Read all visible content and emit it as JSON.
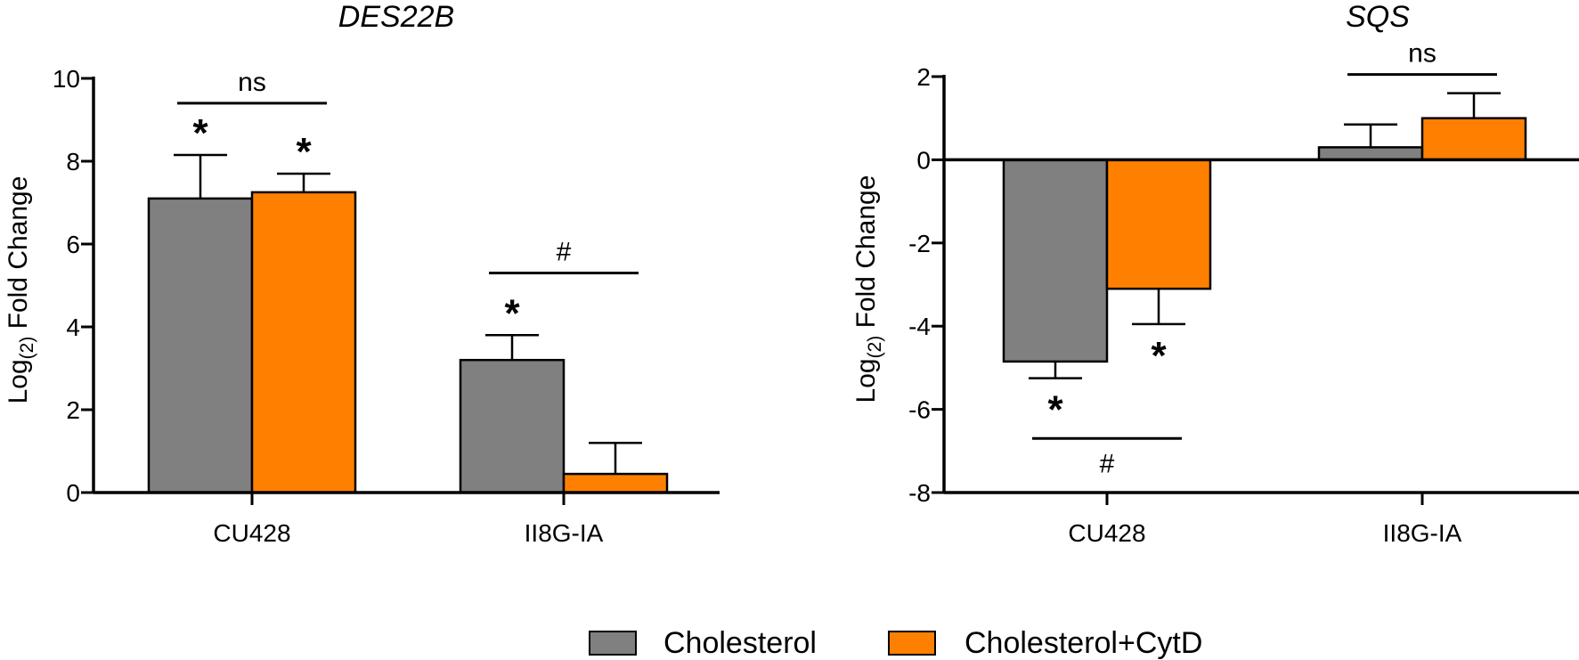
{
  "colors": {
    "series1": "#808080",
    "series2": "#ff8000",
    "axis": "#000000"
  },
  "legend": {
    "items": [
      {
        "label": "Cholesterol",
        "color": "#808080"
      },
      {
        "label": "Cholesterol+CytD",
        "color": "#ff8000"
      }
    ]
  },
  "chart_data": [
    {
      "type": "bar",
      "title": "DES22B",
      "ylabel": "Log",
      "ylabel_sub": "(2)",
      "ylabel_rest": " Fold Change",
      "ylim": [
        0,
        10
      ],
      "yticks": [
        0,
        2,
        4,
        6,
        8,
        10
      ],
      "categories": [
        "CU428",
        "II8G-IA"
      ],
      "series": [
        {
          "name": "Cholesterol",
          "values": [
            7.1,
            3.2
          ],
          "errors": [
            1.05,
            0.6
          ]
        },
        {
          "name": "Cholesterol+CytD",
          "values": [
            7.25,
            0.45
          ],
          "errors": [
            0.45,
            0.75
          ]
        }
      ],
      "annotations": {
        "stars": [
          {
            "category": 0,
            "series": 0,
            "text": "*"
          },
          {
            "category": 0,
            "series": 1,
            "text": "*"
          },
          {
            "category": 1,
            "series": 0,
            "text": "*"
          }
        ],
        "brackets": [
          {
            "category": 0,
            "text": "ns",
            "y": 9.4
          },
          {
            "category": 1,
            "text": "#",
            "y": 5.3
          }
        ]
      }
    },
    {
      "type": "bar",
      "title": "SQS",
      "ylabel": "Log",
      "ylabel_sub": "(2)",
      "ylabel_rest": " Fold Change",
      "ylim": [
        -8,
        2
      ],
      "yticks": [
        -8,
        -6,
        -4,
        -2,
        0,
        2
      ],
      "categories": [
        "CU428",
        "II8G-IA"
      ],
      "series": [
        {
          "name": "Cholesterol",
          "values": [
            -4.85,
            0.3
          ],
          "errors": [
            0.4,
            0.55
          ]
        },
        {
          "name": "Cholesterol+CytD",
          "values": [
            -3.1,
            1.0
          ],
          "errors": [
            0.85,
            0.6
          ]
        }
      ],
      "annotations": {
        "stars": [
          {
            "category": 0,
            "series": 0,
            "text": "*"
          },
          {
            "category": 0,
            "series": 1,
            "text": "*"
          }
        ],
        "brackets": [
          {
            "category": 0,
            "text": "#",
            "y": -6.7
          },
          {
            "category": 1,
            "text": "ns",
            "y": 2.05
          }
        ]
      }
    }
  ]
}
